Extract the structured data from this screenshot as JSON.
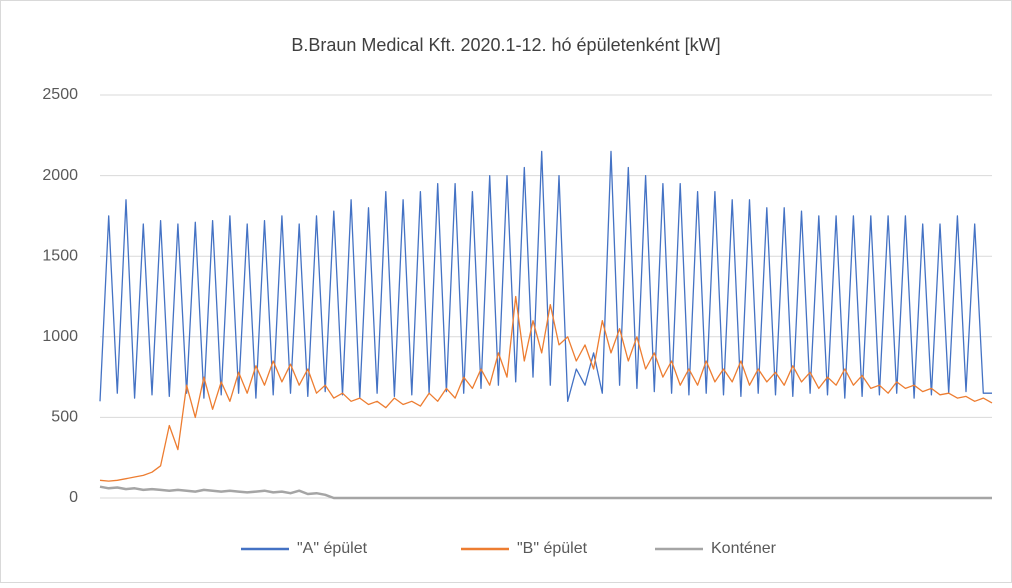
{
  "chart_data": {
    "type": "line",
    "title": "B.Braun Medical Kft. 2020.1-12. hó épületenként [kW]",
    "ylim": [
      0,
      2500
    ],
    "yticks": [
      0,
      500,
      1000,
      1500,
      2000,
      2500
    ],
    "grid": true,
    "legend": "bottom",
    "series": [
      {
        "name": "\"A\" épület",
        "color": "#4472c4",
        "values": [
          600,
          1750,
          650,
          1850,
          620,
          1700,
          640,
          1720,
          630,
          1700,
          650,
          1710,
          620,
          1720,
          640,
          1750,
          650,
          1700,
          620,
          1720,
          640,
          1750,
          650,
          1700,
          630,
          1750,
          660,
          1780,
          640,
          1850,
          620,
          1800,
          650,
          1900,
          630,
          1850,
          640,
          1900,
          650,
          1950,
          660,
          1950,
          650,
          1900,
          680,
          2000,
          700,
          2000,
          720,
          2050,
          750,
          2150,
          700,
          2000,
          600,
          800,
          700,
          900,
          650,
          2150,
          700,
          2050,
          680,
          2000,
          660,
          1950,
          650,
          1950,
          640,
          1900,
          650,
          1900,
          640,
          1850,
          630,
          1850,
          650,
          1800,
          640,
          1800,
          630,
          1780,
          650,
          1750,
          640,
          1750,
          620,
          1750,
          630,
          1750,
          640,
          1750,
          650,
          1750,
          620,
          1700,
          640,
          1700,
          650,
          1750,
          660,
          1700,
          650,
          650
        ]
      },
      {
        "name": "\"B\" épület",
        "color": "#ed7d31",
        "values": [
          110,
          105,
          110,
          120,
          130,
          140,
          160,
          200,
          450,
          300,
          700,
          500,
          750,
          550,
          720,
          600,
          780,
          650,
          820,
          700,
          850,
          720,
          830,
          700,
          800,
          650,
          700,
          620,
          650,
          600,
          620,
          580,
          600,
          560,
          620,
          580,
          600,
          570,
          650,
          600,
          680,
          620,
          750,
          680,
          800,
          700,
          900,
          750,
          1250,
          850,
          1100,
          900,
          1200,
          950,
          1000,
          850,
          950,
          800,
          1100,
          900,
          1050,
          850,
          1000,
          800,
          900,
          750,
          850,
          700,
          800,
          700,
          850,
          720,
          800,
          720,
          850,
          700,
          800,
          720,
          780,
          700,
          820,
          720,
          780,
          680,
          750,
          700,
          800,
          700,
          760,
          680,
          700,
          650,
          720,
          680,
          700,
          660,
          680,
          640,
          650,
          620,
          630,
          600,
          620,
          590
        ]
      },
      {
        "name": "Konténer",
        "color": "#a5a5a5",
        "values": [
          70,
          60,
          65,
          55,
          60,
          50,
          55,
          50,
          45,
          50,
          45,
          40,
          50,
          45,
          40,
          45,
          40,
          35,
          40,
          45,
          35,
          40,
          30,
          45,
          25,
          30,
          20,
          0,
          0,
          0,
          0,
          0,
          0,
          0,
          0,
          0,
          0,
          0,
          0,
          0,
          0,
          0,
          0,
          0,
          0,
          0,
          0,
          0,
          0,
          0,
          0,
          0,
          0,
          0,
          0,
          0,
          0,
          0,
          0,
          0,
          0,
          0,
          0,
          0,
          0,
          0,
          0,
          0,
          0,
          0,
          0,
          0,
          0,
          0,
          0,
          0,
          0,
          0,
          0,
          0,
          0,
          0,
          0,
          0,
          0,
          0,
          0,
          0,
          0,
          0,
          0,
          0,
          0,
          0,
          0,
          0,
          0,
          0,
          0,
          0,
          0,
          0,
          0,
          0
        ]
      }
    ]
  }
}
